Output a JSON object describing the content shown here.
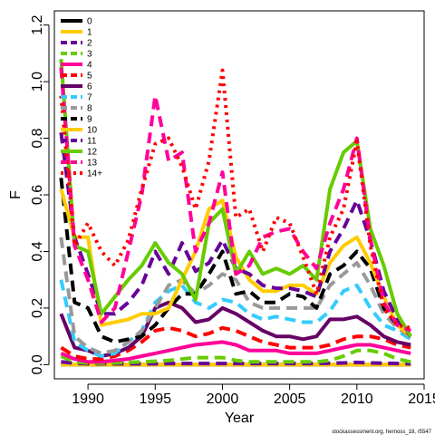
{
  "chart_data": {
    "type": "line",
    "xlabel": "Year",
    "ylabel": "F",
    "xlim": [
      1987.5,
      2015
    ],
    "ylim": [
      -0.05,
      1.25
    ],
    "xticks": [
      1990,
      1995,
      2000,
      2005,
      2010,
      2015
    ],
    "yticks": [
      0.0,
      0.2,
      0.4,
      0.6,
      0.8,
      1.0,
      1.2
    ],
    "ytick_labels": [
      "0.0",
      "0.2",
      "0.4",
      "0.6",
      "0.8",
      "1.0",
      "1.2"
    ],
    "grid": false,
    "legend_position": "top-left",
    "credit": "stockassessment.org, hernoss_18, r5547",
    "x": [
      1988,
      1989,
      1990,
      1991,
      1992,
      1993,
      1994,
      1995,
      1996,
      1997,
      1998,
      1999,
      2000,
      2001,
      2002,
      2003,
      2004,
      2005,
      2006,
      2007,
      2008,
      2009,
      2010,
      2011,
      2012,
      2013,
      2014
    ],
    "series": [
      {
        "name": "0",
        "color": "#000000",
        "dash": "solid",
        "values": [
          0,
          0,
          0,
          0,
          0,
          0,
          0,
          0,
          0,
          0,
          0,
          0,
          0,
          0,
          0,
          0,
          0,
          0,
          0,
          0,
          0,
          0,
          0,
          0,
          0,
          0,
          0
        ]
      },
      {
        "name": "1",
        "color": "#FFCC00",
        "dash": "solid",
        "values": [
          0,
          0,
          0,
          0,
          0,
          0,
          0,
          0,
          0,
          0,
          0,
          0,
          0,
          0,
          0,
          0,
          0,
          0,
          0,
          0,
          0,
          0,
          0,
          0,
          0,
          0,
          0
        ]
      },
      {
        "name": "2",
        "color": "#660099",
        "dash": "dashed",
        "values": [
          0.01,
          0.005,
          0.003,
          0.003,
          0.003,
          0.003,
          0.003,
          0.003,
          0.004,
          0.004,
          0.004,
          0.004,
          0.004,
          0.004,
          0.004,
          0.004,
          0.004,
          0.004,
          0.004,
          0.004,
          0.005,
          0.006,
          0.008,
          0.006,
          0.005,
          0.004,
          0.003
        ]
      },
      {
        "name": "3",
        "color": "#66CC00",
        "dash": "dashed",
        "values": [
          0.03,
          0.01,
          0.005,
          0.005,
          0.006,
          0.008,
          0.01,
          0.012,
          0.015,
          0.02,
          0.025,
          0.025,
          0.025,
          0.015,
          0.01,
          0.01,
          0.01,
          0.01,
          0.01,
          0.01,
          0.015,
          0.03,
          0.05,
          0.05,
          0.04,
          0.02,
          0.01
        ]
      },
      {
        "name": "4",
        "color": "#FF0099",
        "dash": "solid",
        "values": [
          0.04,
          0.02,
          0.01,
          0.01,
          0.015,
          0.02,
          0.03,
          0.04,
          0.05,
          0.06,
          0.07,
          0.075,
          0.08,
          0.07,
          0.05,
          0.05,
          0.05,
          0.04,
          0.04,
          0.04,
          0.05,
          0.06,
          0.07,
          0.07,
          0.06,
          0.05,
          0.04
        ]
      },
      {
        "name": "5",
        "color": "#FF0000",
        "dash": "dashed",
        "values": [
          0.06,
          0.03,
          0.02,
          0.02,
          0.03,
          0.05,
          0.08,
          0.12,
          0.13,
          0.12,
          0.1,
          0.11,
          0.13,
          0.12,
          0.1,
          0.08,
          0.07,
          0.06,
          0.06,
          0.06,
          0.07,
          0.09,
          0.1,
          0.1,
          0.09,
          0.07,
          0.06
        ]
      },
      {
        "name": "6",
        "color": "#660066",
        "dash": "solid",
        "values": [
          0.18,
          0.06,
          0.05,
          0.03,
          0.04,
          0.06,
          0.1,
          0.2,
          0.22,
          0.2,
          0.15,
          0.16,
          0.2,
          0.18,
          0.15,
          0.12,
          0.1,
          0.1,
          0.09,
          0.1,
          0.16,
          0.16,
          0.17,
          0.14,
          0.1,
          0.08,
          0.07
        ]
      },
      {
        "name": "7",
        "color": "#33CCFF",
        "dash": "dashed",
        "values": [
          0.3,
          0.08,
          0.05,
          0.03,
          0.04,
          0.08,
          0.12,
          0.22,
          0.26,
          0.28,
          0.22,
          0.2,
          0.23,
          0.22,
          0.18,
          0.16,
          0.17,
          0.16,
          0.15,
          0.15,
          0.19,
          0.26,
          0.28,
          0.2,
          0.14,
          0.12,
          0.09
        ]
      },
      {
        "name": "8",
        "color": "#999999",
        "dash": "dashed",
        "values": [
          0.45,
          0.1,
          0.06,
          0.04,
          0.05,
          0.08,
          0.12,
          0.2,
          0.28,
          0.3,
          0.25,
          0.28,
          0.32,
          0.3,
          0.22,
          0.2,
          0.2,
          0.2,
          0.2,
          0.2,
          0.28,
          0.32,
          0.36,
          0.28,
          0.18,
          0.13,
          0.1
        ]
      },
      {
        "name": "9",
        "color": "#000000",
        "dash": "dashed",
        "values": [
          0.66,
          0.22,
          0.2,
          0.1,
          0.08,
          0.09,
          0.1,
          0.14,
          0.2,
          0.25,
          0.25,
          0.32,
          0.4,
          0.25,
          0.26,
          0.22,
          0.22,
          0.25,
          0.24,
          0.2,
          0.32,
          0.35,
          0.4,
          0.34,
          0.2,
          0.14,
          0.1
        ]
      },
      {
        "name": "10",
        "color": "#FFCC00",
        "dash": "solid",
        "values": [
          0.62,
          0.45,
          0.45,
          0.14,
          0.15,
          0.16,
          0.18,
          0.18,
          0.2,
          0.3,
          0.4,
          0.55,
          0.58,
          0.38,
          0.3,
          0.26,
          0.26,
          0.28,
          0.28,
          0.25,
          0.36,
          0.42,
          0.45,
          0.36,
          0.24,
          0.14,
          0.1
        ]
      },
      {
        "name": "11",
        "color": "#660099",
        "dash": "dashed",
        "values": [
          0.82,
          0.45,
          0.32,
          0.18,
          0.18,
          0.22,
          0.28,
          0.4,
          0.32,
          0.43,
          0.33,
          0.36,
          0.44,
          0.34,
          0.32,
          0.28,
          0.27,
          0.27,
          0.26,
          0.24,
          0.4,
          0.48,
          0.58,
          0.44,
          0.26,
          0.16,
          0.1
        ]
      },
      {
        "name": "12",
        "color": "#66CC00",
        "dash": "solid",
        "values": [
          1.08,
          0.42,
          0.4,
          0.18,
          0.24,
          0.3,
          0.35,
          0.43,
          0.36,
          0.32,
          0.23,
          0.5,
          0.55,
          0.32,
          0.4,
          0.32,
          0.34,
          0.32,
          0.35,
          0.3,
          0.62,
          0.75,
          0.79,
          0.48,
          0.35,
          0.18,
          0.1
        ]
      },
      {
        "name": "13",
        "color": "#FF0099",
        "dash": "dashed",
        "values": [
          1.05,
          0.42,
          0.3,
          0.15,
          0.2,
          0.4,
          0.6,
          0.95,
          0.72,
          0.75,
          0.4,
          0.5,
          0.68,
          0.32,
          0.35,
          0.45,
          0.47,
          0.48,
          0.4,
          0.34,
          0.5,
          0.62,
          0.8,
          0.44,
          0.22,
          0.14,
          0.12
        ]
      },
      {
        "name": "14+",
        "color": "#FF0000",
        "dash": "dotted",
        "values": [
          0.95,
          0.42,
          0.5,
          0.4,
          0.35,
          0.44,
          0.62,
          0.78,
          0.8,
          0.7,
          0.55,
          0.72,
          1.04,
          0.52,
          0.55,
          0.4,
          0.52,
          0.5,
          0.38,
          0.25,
          0.45,
          0.55,
          0.79,
          0.42,
          0.2,
          0.14,
          0.13
        ]
      }
    ]
  }
}
